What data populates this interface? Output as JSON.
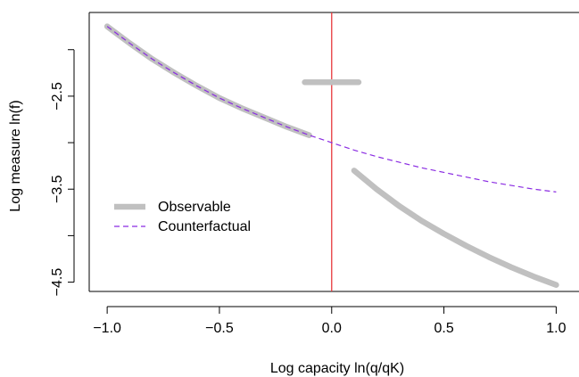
{
  "chart_data": {
    "type": "line",
    "xlabel": "Log capacity ln(q/qK)",
    "ylabel": "Log measure ln(f)",
    "xlim": [
      -1.08,
      1.05
    ],
    "ylim": [
      -4.6,
      -1.6
    ],
    "x_ticks": [
      -1.0,
      -0.5,
      0.0,
      0.5,
      1.0
    ],
    "x_tick_labels": [
      "−1.0",
      "−0.5",
      "0.0",
      "0.5",
      "1.0"
    ],
    "y_ticks": [
      -2.5,
      -3.5,
      -4.5
    ],
    "y_tick_labels": [
      "−2.5",
      "−3.5",
      "−4.5"
    ],
    "grid": false,
    "legend_position": "left-middle",
    "vertical_line": {
      "x": 0.0,
      "color": "#e8383b"
    },
    "series": [
      {
        "name": "Observable",
        "style": "solid-thick",
        "color": "#c0c0c0",
        "segments": [
          {
            "x": [
              -1.0,
              -0.9,
              -0.8,
              -0.7,
              -0.6,
              -0.5,
              -0.4,
              -0.3,
              -0.2,
              -0.1
            ],
            "y": [
              -1.75,
              -1.93,
              -2.1,
              -2.25,
              -2.39,
              -2.52,
              -2.63,
              -2.73,
              -2.83,
              -2.92
            ]
          },
          {
            "x": [
              -0.12,
              0.12
            ],
            "y": [
              -2.35,
              -2.35
            ]
          },
          {
            "x": [
              0.1,
              0.2,
              0.3,
              0.4,
              0.5,
              0.6,
              0.7,
              0.8,
              0.9,
              1.0
            ],
            "y": [
              -3.3,
              -3.5,
              -3.68,
              -3.84,
              -3.98,
              -4.11,
              -4.23,
              -4.34,
              -4.44,
              -4.53
            ]
          }
        ]
      },
      {
        "name": "Counterfactual",
        "style": "dashed",
        "color": "#8a2be2",
        "segments": [
          {
            "x": [
              -1.0,
              -0.9,
              -0.8,
              -0.7,
              -0.6,
              -0.5,
              -0.4,
              -0.3,
              -0.2,
              -0.1,
              0.0,
              0.1,
              0.2,
              0.3,
              0.4,
              0.5,
              0.6,
              0.7,
              0.8,
              0.9,
              1.0
            ],
            "y": [
              -1.75,
              -1.93,
              -2.1,
              -2.25,
              -2.39,
              -2.52,
              -2.63,
              -2.73,
              -2.83,
              -2.92,
              -3.0,
              -3.08,
              -3.15,
              -3.21,
              -3.27,
              -3.32,
              -3.37,
              -3.42,
              -3.46,
              -3.5,
              -3.53
            ]
          }
        ]
      }
    ]
  }
}
